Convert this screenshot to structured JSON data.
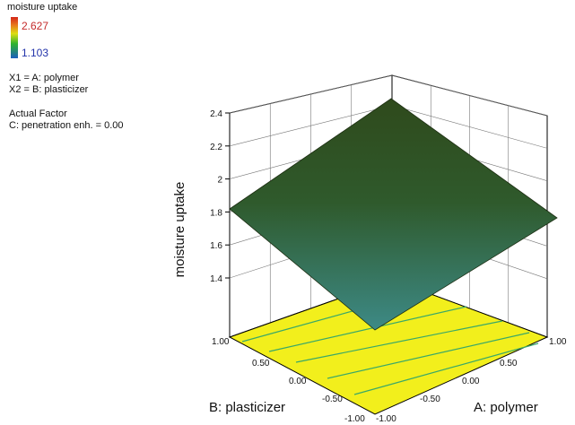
{
  "legend": {
    "title": "moisture uptake",
    "max_label": "2.627",
    "min_label": "1.103",
    "colors": [
      "#d4261a",
      "#e87a1c",
      "#dede10",
      "#2fb32f",
      "#1a5fbe"
    ]
  },
  "factors": {
    "x1": "X1 = A: polymer",
    "x2": "X2 = B: plasticizer",
    "actual_heading": "Actual Factor",
    "actual_value": "C: penetration enh. = 0.00"
  },
  "chart_data": {
    "type": "surface",
    "title": "",
    "xlabel": "A: polymer",
    "ylabel": "B: plasticizer",
    "zlabel": "moisture uptake",
    "x_ticks": [
      "-1.00",
      "-0.50",
      "0.00",
      "0.50",
      "1.00"
    ],
    "y_ticks": [
      "-1.00",
      "-0.50",
      "0.00",
      "0.50",
      "1.00"
    ],
    "z_ticks": [
      "1.4",
      "1.6",
      "1.8",
      "2",
      "2.2",
      "2.4"
    ],
    "xlim": [
      -1,
      1
    ],
    "ylim": [
      -1,
      1
    ],
    "zlim": [
      1.3,
      2.4
    ],
    "surface_corners": [
      {
        "x": -1,
        "y": -1,
        "z": 1.15
      },
      {
        "x": 1,
        "y": -1,
        "z": 1.8
      },
      {
        "x": 1,
        "y": 1,
        "z": 2.34
      },
      {
        "x": -1,
        "y": 1,
        "z": 1.8
      }
    ],
    "floor_color": "#f2ef1c",
    "surface_color_top": "#2f4a1c",
    "surface_color_bottom": "#3d8a86",
    "grid": true
  }
}
